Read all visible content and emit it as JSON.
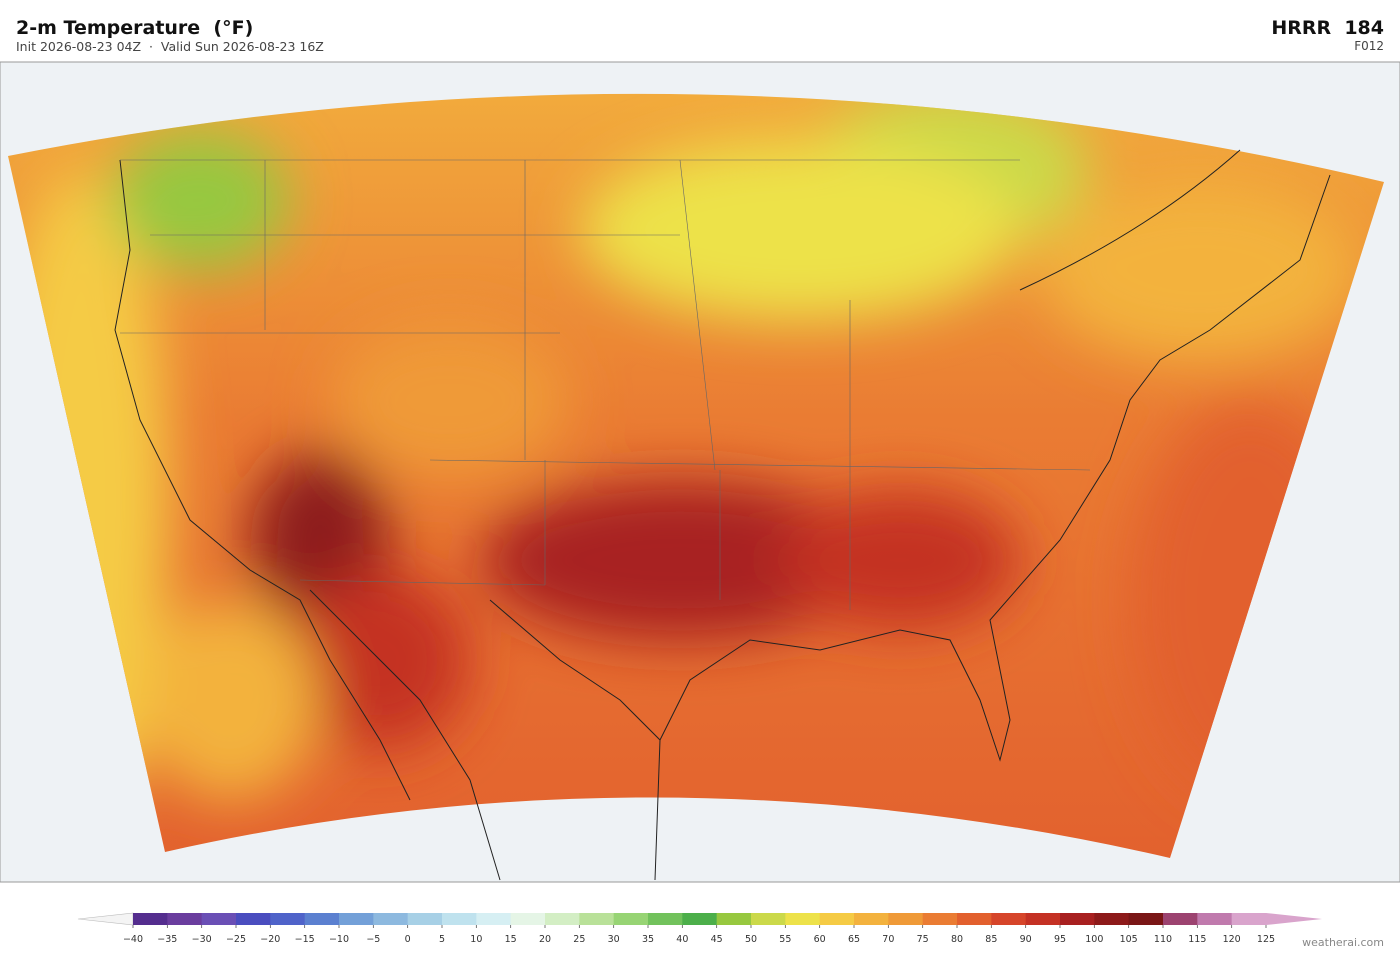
{
  "header": {
    "title": "2-m Temperature  (°F)",
    "subtitle": "Init 2026-08-23 04Z  ·  Valid Sun 2026-08-23 16Z",
    "model": "HRRR  184",
    "forecast": "F012"
  },
  "colorbar": {
    "ticks": [
      {
        "value": -40,
        "label": "−40"
      },
      {
        "value": -35,
        "label": "−35"
      },
      {
        "value": -30,
        "label": "−30"
      },
      {
        "value": -25,
        "label": "−25"
      },
      {
        "value": -20,
        "label": "−20"
      },
      {
        "value": -15,
        "label": "−15"
      },
      {
        "value": -10,
        "label": "−10"
      },
      {
        "value": -5,
        "label": "−5"
      },
      0,
      5,
      10,
      15,
      20,
      25,
      30,
      35,
      40,
      45,
      50,
      55,
      60,
      65,
      70,
      75,
      80,
      85,
      90,
      95,
      100,
      105,
      110,
      115,
      120,
      125
    ],
    "colors": [
      "#542d8e",
      "#6a3d9e",
      "#6a4fb5",
      "#4a4dbf",
      "#4f63c9",
      "#5b80d0",
      "#73a0d8",
      "#8db9df",
      "#a7d0e6",
      "#bfe2ee",
      "#d6eff3",
      "#e5f5e6",
      "#d3eec4",
      "#b9e199",
      "#97d474",
      "#72c25c",
      "#4caf4a",
      "#97c83f",
      "#cbd94a",
      "#ede24a",
      "#f5cb45",
      "#f3b23e",
      "#ef9a38",
      "#ea7c33",
      "#e2602e",
      "#d6452a",
      "#c43124",
      "#a82020",
      "#8d1a1a",
      "#7a1616",
      "#9c4370",
      "#c07aad",
      "#d9a4cc"
    ],
    "under_color": "#f4f4f4",
    "over_color": "#d9a4cc"
  },
  "credit": "weatherai.com"
}
